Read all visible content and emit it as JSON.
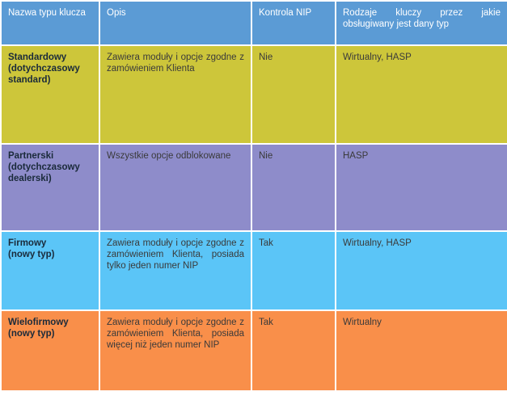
{
  "colors": {
    "header": "#5b9bd5",
    "standard": "#cdc63a",
    "partner": "#8e8cca",
    "firm": "#5bc5f7",
    "multifirm": "#f98f4a"
  },
  "table": {
    "headers": [
      "Nazwa typu klucza",
      "Opis",
      "Kontrola NIP",
      "Rodzaje kluczy przez jakie obsługiwany jest dany typ"
    ],
    "rows": [
      {
        "name": "Standardowy\n(dotychczasowy\nstandard)",
        "description": "Zawiera moduły i opcje zgodne z zamówieniem Klienta",
        "nip": "Nie",
        "key_types": "Wirtualny, HASP"
      },
      {
        "name": "Partnerski\n(dotychczasowy\ndealerski)",
        "description": "Wszystkie opcje odblokowane",
        "nip": "Nie",
        "key_types": "HASP"
      },
      {
        "name": "Firmowy\n (nowy typ)",
        "description": "Zawiera moduły i opcje zgodne z zamówieniem Klienta, posiada tylko jeden numer NIP",
        "nip": "Tak",
        "key_types": "Wirtualny, HASP"
      },
      {
        "name": "Wielofirmowy\n (nowy typ)",
        "description": "Zawiera moduły i opcje zgodne z zamówieniem Klienta, posiada więcej niż jeden numer NIP",
        "nip": "Tak",
        "key_types": "Wirtualny"
      }
    ]
  }
}
